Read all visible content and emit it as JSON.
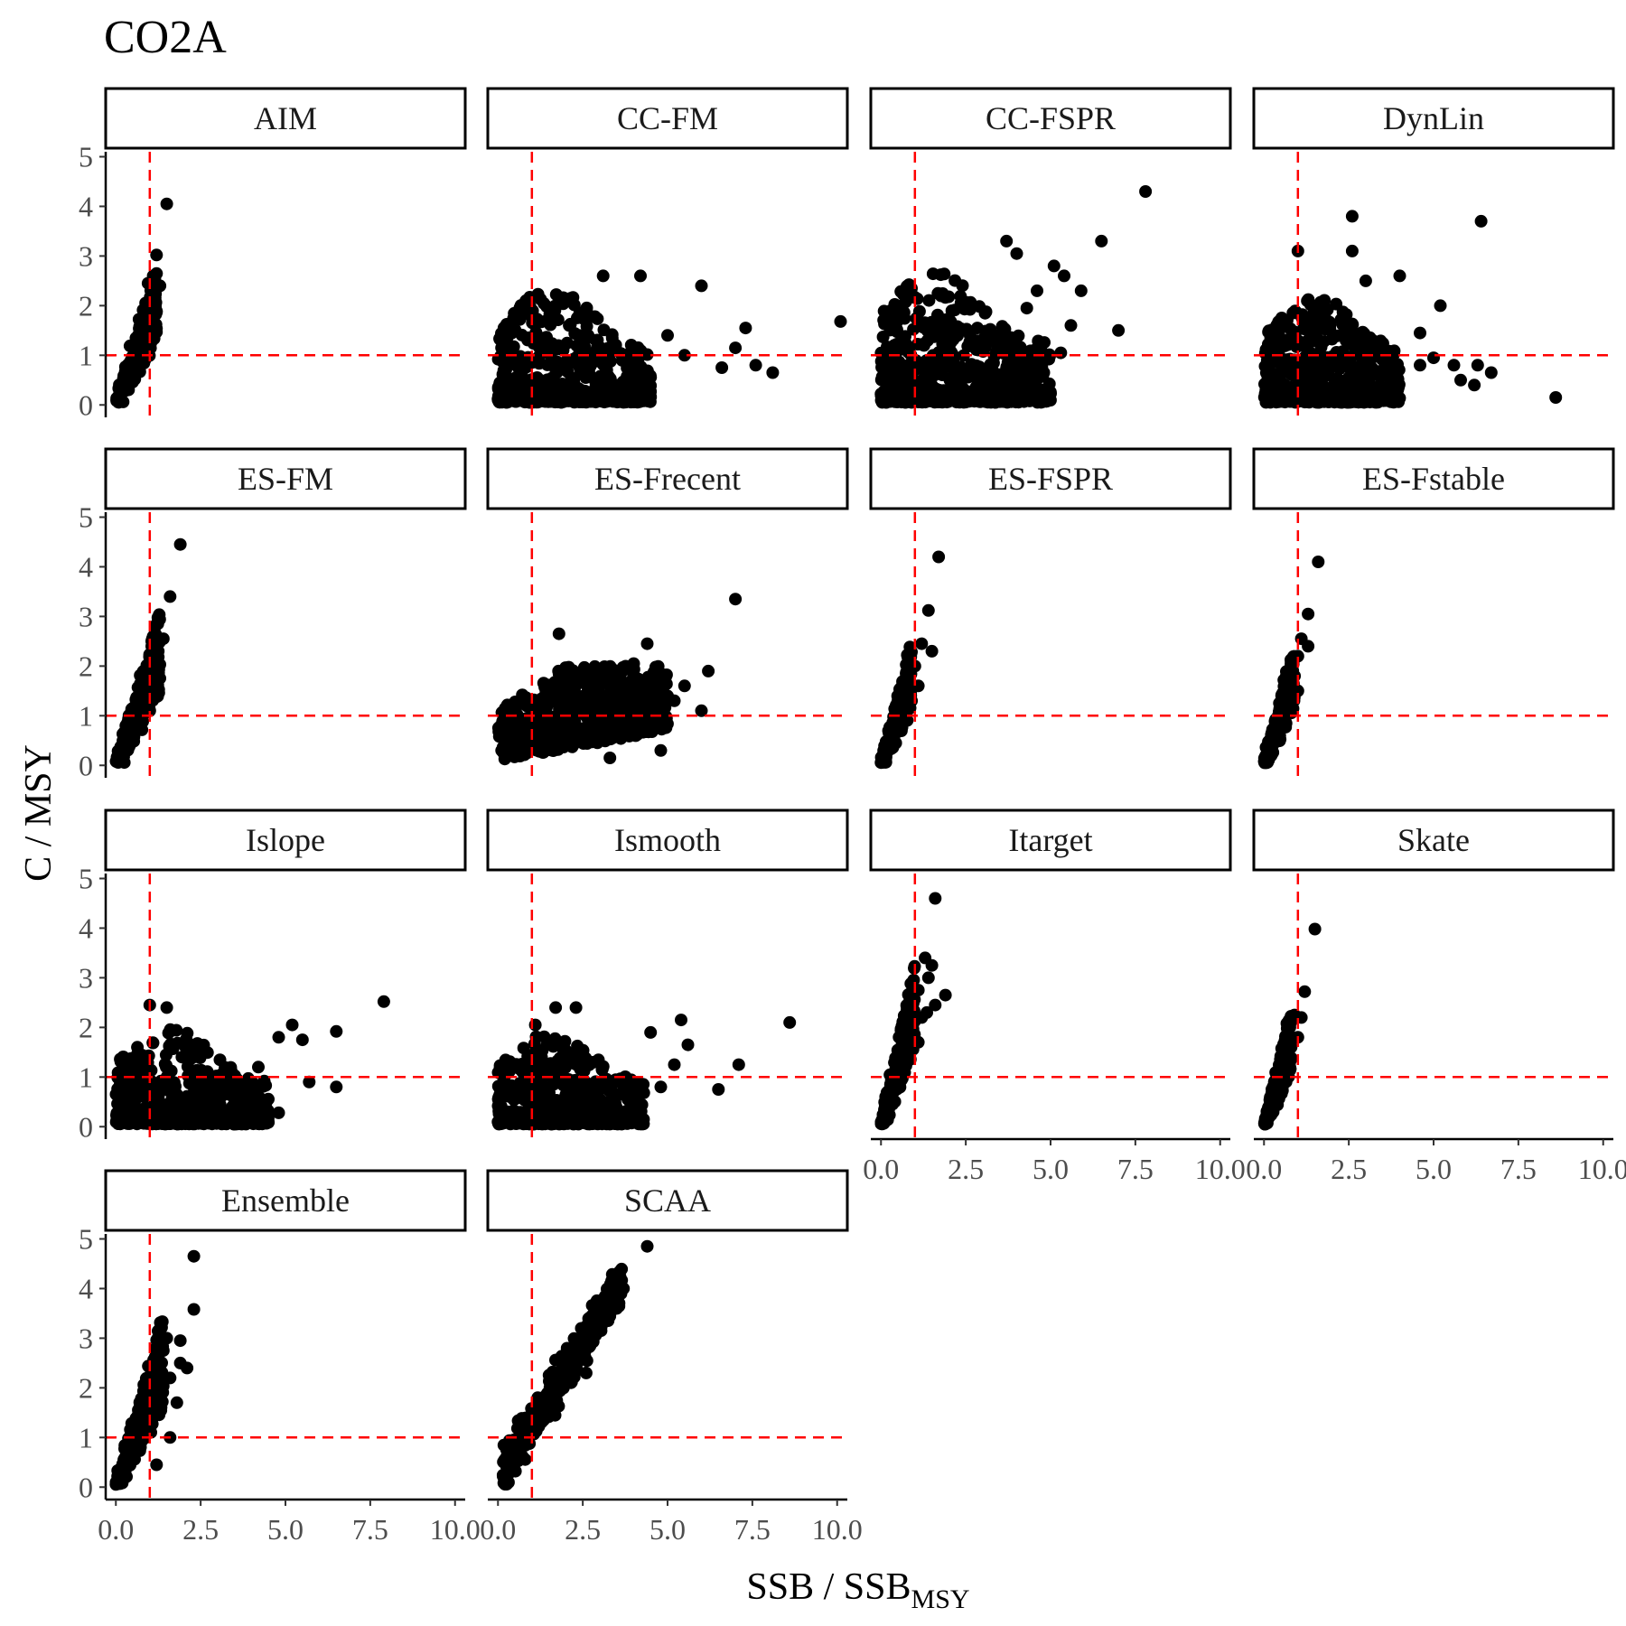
{
  "chart_data": {
    "type": "scatter",
    "title": "CO2A",
    "xlabel": "SSB / SSB",
    "xlabel_subscript": "MSY",
    "ylabel": "C / MSY",
    "xlim": [
      -0.3,
      10.3
    ],
    "ylim": [
      -0.25,
      5.1
    ],
    "x_ticks": [
      0,
      2.5,
      5,
      7.5,
      10
    ],
    "x_tick_labels": [
      "0.0",
      "2.5",
      "5.0",
      "7.5",
      "10.0"
    ],
    "y_ticks": [
      0,
      1,
      2,
      3,
      4,
      5
    ],
    "y_tick_labels": [
      "0",
      "1",
      "2",
      "3",
      "4",
      "5"
    ],
    "reference_lines": {
      "x": 1,
      "y": 1,
      "color": "#ff0000",
      "style": "dashed"
    },
    "point_color": "#000000",
    "grid": false,
    "legend": "none",
    "panels": [
      {
        "name": "AIM",
        "row": 0,
        "col": 0,
        "pattern": "tight",
        "slope": 2.0,
        "xmax": 1.2,
        "n": 260,
        "points": [
          [
            1.5,
            4.05
          ],
          [
            1.2,
            3.02
          ],
          [
            1.3,
            2.4
          ],
          [
            1.1,
            2.6
          ],
          [
            0.95,
            2.45
          ],
          [
            1.05,
            2.2
          ],
          [
            0.9,
            2.0
          ],
          [
            1.0,
            1.8
          ],
          [
            0.85,
            1.6
          ],
          [
            1.0,
            1.2
          ]
        ]
      },
      {
        "name": "CC-FM",
        "row": 0,
        "col": 1,
        "pattern": "cloud",
        "xmax": 4.5,
        "ymax": 2.4,
        "n": 700,
        "points": [
          [
            10.1,
            1.68
          ],
          [
            8.1,
            0.65
          ],
          [
            7.6,
            0.8
          ],
          [
            7.3,
            1.55
          ],
          [
            7.0,
            1.15
          ],
          [
            6.0,
            2.4
          ],
          [
            6.6,
            0.75
          ],
          [
            4.2,
            2.6
          ],
          [
            3.1,
            2.6
          ],
          [
            5.5,
            1.0
          ],
          [
            5.0,
            1.4
          ]
        ]
      },
      {
        "name": "CC-FSPR",
        "row": 0,
        "col": 2,
        "pattern": "cloud",
        "xmax": 5.0,
        "ymax": 2.8,
        "n": 750,
        "points": [
          [
            7.8,
            4.3
          ],
          [
            6.5,
            3.3
          ],
          [
            7.0,
            1.5
          ],
          [
            5.1,
            2.8
          ],
          [
            5.4,
            2.6
          ],
          [
            5.9,
            2.3
          ],
          [
            5.6,
            1.6
          ],
          [
            5.3,
            1.05
          ],
          [
            4.8,
            0.65
          ],
          [
            4.6,
            2.3
          ],
          [
            4.0,
            3.05
          ],
          [
            4.3,
            1.95
          ],
          [
            3.7,
            3.3
          ]
        ]
      },
      {
        "name": "DynLin",
        "row": 0,
        "col": 3,
        "pattern": "cloud",
        "xmax": 4.0,
        "ymax": 2.2,
        "n": 700,
        "points": [
          [
            8.6,
            0.15
          ],
          [
            6.4,
            3.7
          ],
          [
            2.6,
            3.8
          ],
          [
            2.6,
            3.1
          ],
          [
            1.0,
            3.1
          ],
          [
            3.0,
            2.5
          ],
          [
            4.0,
            2.6
          ],
          [
            5.2,
            2.0
          ],
          [
            4.6,
            1.45
          ],
          [
            5.0,
            0.95
          ],
          [
            5.6,
            0.8
          ],
          [
            6.3,
            0.8
          ],
          [
            6.7,
            0.65
          ],
          [
            5.8,
            0.5
          ],
          [
            6.2,
            0.4
          ],
          [
            4.6,
            0.8
          ]
        ]
      },
      {
        "name": "ES-FM",
        "row": 1,
        "col": 0,
        "pattern": "tight",
        "slope": 2.1,
        "xmax": 1.3,
        "n": 260,
        "points": [
          [
            1.9,
            4.45
          ],
          [
            1.6,
            3.4
          ],
          [
            1.4,
            2.55
          ],
          [
            1.1,
            2.6
          ],
          [
            1.25,
            2.3
          ],
          [
            1.0,
            2.0
          ],
          [
            0.9,
            1.6
          ],
          [
            1.0,
            1.1
          ]
        ]
      },
      {
        "name": "ES-Frecent",
        "row": 1,
        "col": 1,
        "pattern": "band",
        "xmax": 5.0,
        "ymax": 2.0,
        "n": 650,
        "points": [
          [
            7.0,
            3.35
          ],
          [
            6.2,
            1.9
          ],
          [
            6.0,
            1.1
          ],
          [
            5.2,
            1.3
          ],
          [
            4.4,
            2.45
          ],
          [
            4.0,
            2.05
          ],
          [
            1.8,
            2.65
          ],
          [
            4.8,
            0.3
          ],
          [
            3.3,
            0.15
          ],
          [
            5.5,
            1.6
          ]
        ]
      },
      {
        "name": "ES-FSPR",
        "row": 1,
        "col": 2,
        "pattern": "tight",
        "slope": 2.3,
        "xmax": 0.9,
        "n": 220,
        "points": [
          [
            1.7,
            4.2
          ],
          [
            1.4,
            3.12
          ],
          [
            1.2,
            2.45
          ],
          [
            1.5,
            2.3
          ],
          [
            1.0,
            2.0
          ],
          [
            1.1,
            1.6
          ],
          [
            0.9,
            1.3
          ]
        ]
      },
      {
        "name": "ES-Fstable",
        "row": 1,
        "col": 3,
        "pattern": "tight",
        "slope": 2.4,
        "xmax": 0.9,
        "n": 220,
        "points": [
          [
            1.6,
            4.1
          ],
          [
            1.3,
            3.05
          ],
          [
            1.1,
            2.55
          ],
          [
            1.3,
            2.4
          ],
          [
            1.0,
            2.2
          ],
          [
            0.9,
            1.8
          ],
          [
            1.0,
            1.5
          ]
        ]
      },
      {
        "name": "Islope",
        "row": 2,
        "col": 0,
        "pattern": "cloud",
        "xmax": 4.5,
        "ymax": 2.0,
        "n": 650,
        "points": [
          [
            7.9,
            2.52
          ],
          [
            6.5,
            1.92
          ],
          [
            6.5,
            0.8
          ],
          [
            5.7,
            0.9
          ],
          [
            5.5,
            1.75
          ],
          [
            5.2,
            2.05
          ],
          [
            4.8,
            1.8
          ],
          [
            4.8,
            0.28
          ],
          [
            4.2,
            1.2
          ],
          [
            1.0,
            2.45
          ],
          [
            1.5,
            2.4
          ]
        ]
      },
      {
        "name": "Ismooth",
        "row": 2,
        "col": 1,
        "pattern": "cloud",
        "xmax": 4.3,
        "ymax": 1.9,
        "n": 650,
        "points": [
          [
            8.6,
            2.1
          ],
          [
            7.1,
            1.25
          ],
          [
            6.5,
            0.75
          ],
          [
            5.4,
            2.15
          ],
          [
            5.6,
            1.65
          ],
          [
            5.2,
            1.25
          ],
          [
            4.8,
            0.8
          ],
          [
            4.5,
            1.9
          ],
          [
            1.7,
            2.4
          ],
          [
            2.3,
            2.4
          ],
          [
            1.1,
            2.05
          ]
        ]
      },
      {
        "name": "Itarget",
        "row": 2,
        "col": 2,
        "pattern": "tight",
        "slope": 2.8,
        "xmax": 1.0,
        "n": 240,
        "points": [
          [
            1.6,
            4.6
          ],
          [
            1.3,
            3.4
          ],
          [
            1.5,
            3.25
          ],
          [
            1.4,
            3.0
          ],
          [
            1.9,
            2.65
          ],
          [
            1.6,
            2.45
          ],
          [
            1.1,
            2.75
          ],
          [
            1.2,
            2.2
          ],
          [
            1.35,
            2.3
          ],
          [
            1.1,
            1.7
          ]
        ]
      },
      {
        "name": "Skate",
        "row": 2,
        "col": 3,
        "pattern": "tight",
        "slope": 2.6,
        "xmax": 0.8,
        "n": 200,
        "points": [
          [
            1.5,
            3.98
          ],
          [
            1.2,
            2.72
          ],
          [
            0.9,
            2.25
          ],
          [
            1.1,
            2.2
          ],
          [
            1.0,
            1.8
          ],
          [
            0.8,
            1.6
          ]
        ]
      },
      {
        "name": "Ensemble",
        "row": 3,
        "col": 0,
        "pattern": "tight",
        "slope": 2.1,
        "xmax": 1.4,
        "n": 280,
        "points": [
          [
            2.3,
            4.65
          ],
          [
            2.3,
            3.58
          ],
          [
            1.5,
            3.0
          ],
          [
            1.9,
            2.95
          ],
          [
            1.4,
            2.75
          ],
          [
            1.9,
            2.5
          ],
          [
            2.1,
            2.4
          ],
          [
            1.6,
            2.2
          ],
          [
            1.8,
            1.7
          ],
          [
            1.6,
            1.0
          ],
          [
            1.2,
            1.6
          ],
          [
            1.2,
            0.45
          ],
          [
            1.1,
            2.45
          ]
        ]
      },
      {
        "name": "SCAA",
        "row": 3,
        "col": 1,
        "pattern": "line",
        "slope": 1.1,
        "xmax": 3.5,
        "n": 360,
        "points": [
          [
            4.4,
            4.85
          ],
          [
            3.7,
            4.0
          ],
          [
            3.2,
            3.55
          ],
          [
            3.5,
            3.6
          ],
          [
            3.0,
            3.3
          ],
          [
            2.7,
            3.0
          ],
          [
            2.6,
            2.3
          ]
        ]
      }
    ]
  }
}
